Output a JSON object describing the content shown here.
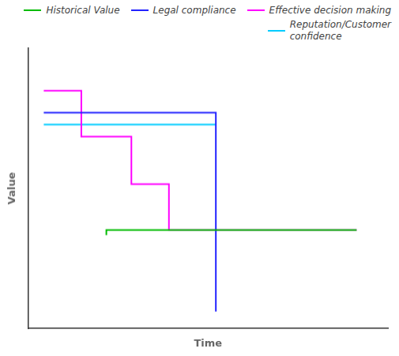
{
  "chart_data": {
    "type": "line",
    "xlabel": "Time",
    "ylabel": "Value",
    "series": [
      {
        "name": "Historical Value",
        "color": "#00bb00",
        "x": [
          2,
          2,
          10
        ],
        "values": [
          0,
          0.3,
          0.3
        ]
      },
      {
        "name": "Legal compliance",
        "color": "#2222ff",
        "x": [
          0,
          5.5,
          5.5
        ],
        "values": [
          7.2,
          7.2,
          -4.5
        ]
      },
      {
        "name": "Effective decision making",
        "color": "#ff00ff",
        "x": [
          0,
          1.2,
          1.2,
          2.8,
          2.8,
          4.0,
          4.0,
          10
        ],
        "values": [
          8.5,
          8.5,
          5.8,
          5.8,
          3.0,
          3.0,
          0.3,
          0.3
        ]
      },
      {
        "name": "Reputation/Customer\nconfidence",
        "color": "#00ccff",
        "x": [
          0,
          5.5
        ],
        "values": [
          6.5,
          6.5
        ]
      }
    ],
    "xlim": [
      -0.5,
      11
    ],
    "ylim": [
      -5.5,
      11
    ],
    "tick_labels": false,
    "grid": false,
    "legend": "upper right"
  }
}
